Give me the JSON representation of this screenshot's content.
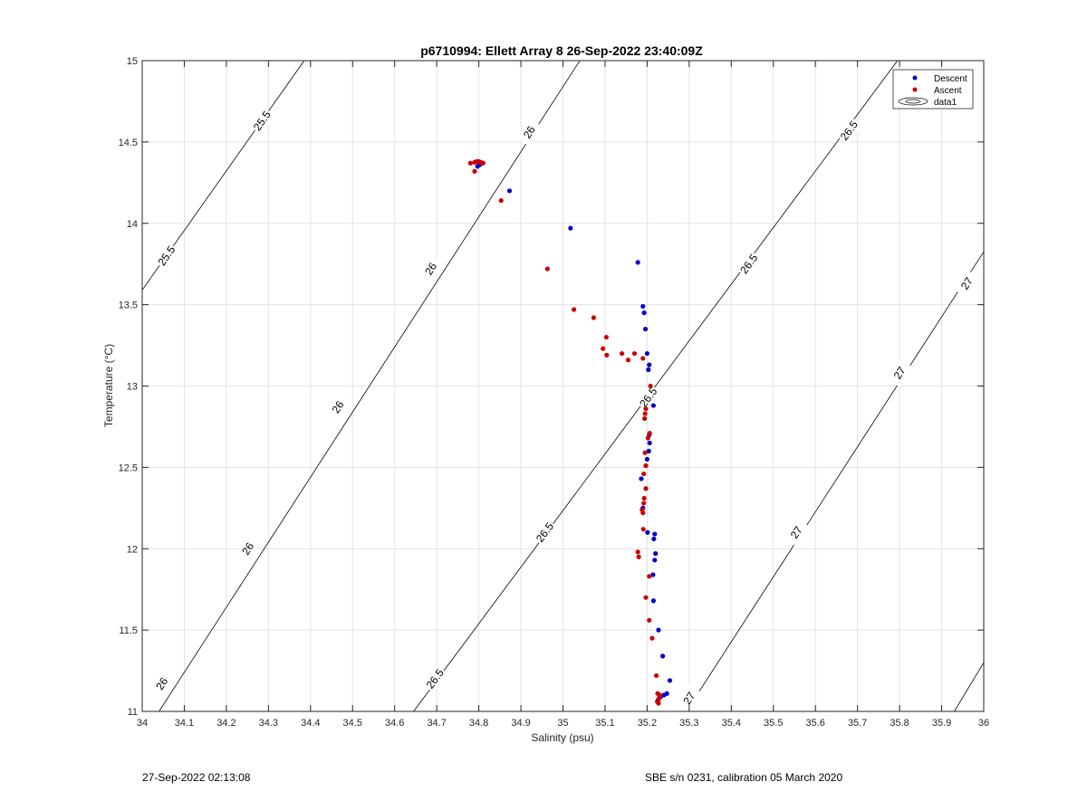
{
  "chart_data": {
    "type": "scatter",
    "title": "p6710994: Ellett Array 8 26-Sep-2022 23:40:09Z",
    "xlabel": "Salinity (psu)",
    "ylabel": "Temperature (°C)",
    "xlim": [
      34,
      36
    ],
    "ylim": [
      11,
      15
    ],
    "xticks": [
      "34",
      "34.1",
      "34.2",
      "34.3",
      "34.4",
      "34.5",
      "34.6",
      "34.7",
      "34.8",
      "34.9",
      "35",
      "35.1",
      "35.2",
      "35.3",
      "35.4",
      "35.5",
      "35.6",
      "35.7",
      "35.8",
      "35.9",
      "36"
    ],
    "yticks": [
      "11",
      "11.5",
      "12",
      "12.5",
      "13",
      "13.5",
      "14",
      "14.5",
      "15"
    ],
    "grid": true,
    "legend_position": "top-right",
    "legend": [
      "Descent",
      "Ascent",
      "data1"
    ],
    "series": [
      {
        "name": "Descent",
        "color": "#0000cc",
        "points": [
          [
            34.802,
            14.36
          ],
          [
            34.797,
            14.35
          ],
          [
            34.873,
            14.2
          ],
          [
            35.018,
            13.97
          ],
          [
            35.178,
            13.76
          ],
          [
            35.19,
            13.49
          ],
          [
            35.193,
            13.45
          ],
          [
            35.196,
            13.35
          ],
          [
            35.2,
            13.2
          ],
          [
            35.205,
            13.13
          ],
          [
            35.203,
            13.1
          ],
          [
            35.215,
            12.88
          ],
          [
            35.205,
            12.7
          ],
          [
            35.206,
            12.65
          ],
          [
            35.204,
            12.6
          ],
          [
            35.2,
            12.55
          ],
          [
            35.197,
            12.51
          ],
          [
            35.186,
            12.43
          ],
          [
            35.19,
            12.25
          ],
          [
            35.201,
            12.1
          ],
          [
            35.218,
            12.09
          ],
          [
            35.216,
            12.06
          ],
          [
            35.22,
            11.97
          ],
          [
            35.218,
            11.93
          ],
          [
            35.214,
            11.84
          ],
          [
            35.215,
            11.68
          ],
          [
            35.227,
            11.5
          ],
          [
            35.237,
            11.34
          ],
          [
            35.254,
            11.19
          ],
          [
            35.247,
            11.11
          ],
          [
            35.24,
            11.1
          ],
          [
            35.232,
            11.09
          ],
          [
            35.226,
            11.07
          ]
        ]
      },
      {
        "name": "Ascent",
        "color": "#cc0000",
        "points": [
          [
            34.78,
            14.37
          ],
          [
            34.79,
            14.375
          ],
          [
            34.8,
            14.38
          ],
          [
            34.805,
            14.375
          ],
          [
            34.81,
            14.37
          ],
          [
            34.795,
            14.38
          ],
          [
            34.79,
            14.32
          ],
          [
            34.853,
            14.14
          ],
          [
            34.963,
            13.72
          ],
          [
            35.026,
            13.47
          ],
          [
            35.073,
            13.42
          ],
          [
            35.103,
            13.3
          ],
          [
            35.095,
            13.23
          ],
          [
            35.104,
            13.19
          ],
          [
            35.14,
            13.2
          ],
          [
            35.17,
            13.2
          ],
          [
            35.155,
            13.16
          ],
          [
            35.19,
            13.17
          ],
          [
            35.208,
            13.0
          ],
          [
            35.197,
            12.86
          ],
          [
            35.195,
            12.83
          ],
          [
            35.194,
            12.8
          ],
          [
            35.206,
            12.71
          ],
          [
            35.202,
            12.68
          ],
          [
            35.195,
            12.59
          ],
          [
            35.197,
            12.51
          ],
          [
            35.192,
            12.46
          ],
          [
            35.197,
            12.37
          ],
          [
            35.193,
            12.31
          ],
          [
            35.192,
            12.28
          ],
          [
            35.188,
            12.24
          ],
          [
            35.19,
            12.22
          ],
          [
            35.191,
            12.12
          ],
          [
            35.178,
            11.98
          ],
          [
            35.18,
            11.95
          ],
          [
            35.205,
            11.83
          ],
          [
            35.197,
            11.7
          ],
          [
            35.205,
            11.56
          ],
          [
            35.212,
            11.45
          ],
          [
            35.222,
            11.22
          ],
          [
            35.225,
            11.11
          ],
          [
            35.23,
            11.1
          ],
          [
            35.228,
            11.08
          ],
          [
            35.224,
            11.06
          ],
          [
            35.227,
            11.05
          ]
        ]
      }
    ],
    "density_contours": [
      {
        "label": "25.5",
        "coords": [
          [
            34.0,
            13.59
          ],
          [
            34.385,
            15.0
          ]
        ],
        "label_positions": [
          [
            34.058,
            13.8
          ],
          [
            34.285,
            14.63
          ]
        ]
      },
      {
        "label": "26",
        "coords": [
          [
            34.04,
            11.0
          ],
          [
            35.04,
            15.0
          ]
        ],
        "label_positions": [
          [
            34.047,
            11.17
          ],
          [
            34.251,
            12.0
          ],
          [
            34.465,
            12.87
          ],
          [
            34.686,
            13.72
          ],
          [
            34.92,
            14.56
          ]
        ]
      },
      {
        "label": "26.5",
        "coords": [
          [
            34.645,
            11.0
          ],
          [
            35.795,
            15.0
          ]
        ],
        "label_positions": [
          [
            34.696,
            11.2
          ],
          [
            34.957,
            12.1
          ],
          [
            35.203,
            12.93
          ],
          [
            35.442,
            13.75
          ],
          [
            35.68,
            14.57
          ]
        ]
      },
      {
        "label": "27",
        "coords": [
          [
            35.293,
            11.0
          ],
          [
            36.0,
            13.825
          ]
        ],
        "label_positions": [
          [
            35.3,
            11.08
          ],
          [
            35.555,
            12.1
          ],
          [
            35.8,
            13.08
          ],
          [
            35.96,
            13.63
          ]
        ]
      },
      {
        "label": "",
        "coords": [
          [
            35.93,
            11.0
          ],
          [
            36.0,
            11.3
          ]
        ],
        "label_positions": []
      }
    ]
  },
  "footer": {
    "left": "27-Sep-2022 02:13:08",
    "right": "SBE s/n 0231, calibration 05 March 2020"
  }
}
